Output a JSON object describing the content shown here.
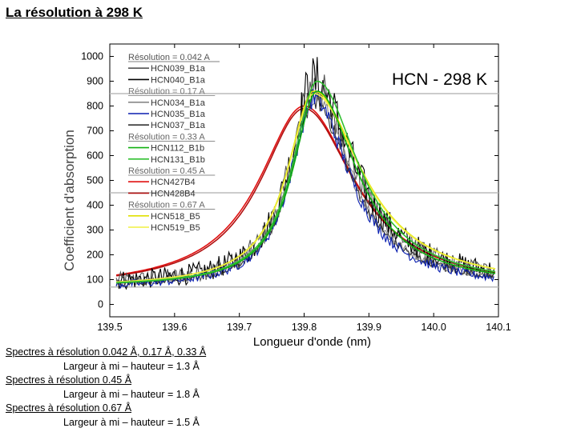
{
  "slide": {
    "title": "La résolution à 298 K",
    "notes": [
      {
        "text": "Spectres à résolution 0.042 Å, 0.17 Å, 0.33 Å",
        "underline": true,
        "indent": false
      },
      {
        "text": "Largeur à mi – hauteur = 1.3 Å",
        "underline": false,
        "indent": true
      },
      {
        "text": "Spectres à résolution 0.45 Å",
        "underline": true,
        "indent": false
      },
      {
        "text": "Largeur à mi – hauteur = 1.8 Å",
        "underline": false,
        "indent": true
      },
      {
        "text": "Spectres à résolution 0.67 Å",
        "underline": true,
        "indent": false
      },
      {
        "text": "Largeur à mi – hauteur = 1.5 Å",
        "underline": false,
        "indent": true
      }
    ]
  },
  "chart_data": {
    "type": "line",
    "title": "HCN - 298 K",
    "xlabel": "Longueur d'onde (nm)",
    "ylabel": "Coefficient d'absorption",
    "xlim": [
      139.5,
      140.1
    ],
    "ylim": [
      -50,
      1050
    ],
    "xticks": [
      "139.5",
      "139.6",
      "139.7",
      "139.8",
      "139.9",
      "140.0",
      "140.1"
    ],
    "yticks": [
      "0",
      "100",
      "200",
      "300",
      "400",
      "500",
      "600",
      "700",
      "800",
      "900",
      "1000"
    ],
    "hlines": [
      850,
      450,
      70
    ],
    "legend_position": "top-left",
    "groups": [
      {
        "label": "Résolution = 0.042 A",
        "color": "#555555",
        "series": [
          {
            "name": "HCN039_B1a",
            "color": "#555555"
          },
          {
            "name": "HCN040_B1a",
            "color": "#000000"
          }
        ]
      },
      {
        "label": "Résolution = 0.17 A",
        "color": "#777777",
        "series": [
          {
            "name": "HCN034_B1a",
            "color": "#888888"
          },
          {
            "name": "HCN035_B1a",
            "color": "#0a1fb0"
          },
          {
            "name": "HCN037_B1a",
            "color": "#333333"
          }
        ]
      },
      {
        "label": "Résolution = 0.33 A",
        "color": "#666666",
        "series": [
          {
            "name": "HCN112_B1b",
            "color": "#10b010"
          },
          {
            "name": "HCN131_B1b",
            "color": "#30c030"
          }
        ]
      },
      {
        "label": "Résolution = 0.45 A",
        "color": "#666666",
        "series": [
          {
            "name": "HCN427B4",
            "color": "#e01010"
          },
          {
            "name": "HCN428B4",
            "color": "#b01010"
          }
        ]
      },
      {
        "label": "Résolution = 0.67 A",
        "color": "#666666",
        "series": [
          {
            "name": "HCN518_B5",
            "color": "#e0e000"
          },
          {
            "name": "HCN519_B5",
            "color": "#f0f040"
          }
        ]
      }
    ],
    "profiles": {
      "HCN039_B1a": {
        "center": 139.815,
        "peak": 880,
        "hwhm_left": 0.045,
        "hwhm_right": 0.075,
        "base": 80,
        "noise": 90
      },
      "HCN040_B1a": {
        "center": 139.815,
        "peak": 900,
        "hwhm_left": 0.045,
        "hwhm_right": 0.075,
        "base": 80,
        "noise": 110
      },
      "HCN034_B1a": {
        "center": 139.815,
        "peak": 840,
        "hwhm_left": 0.044,
        "hwhm_right": 0.07,
        "base": 70,
        "noise": 40
      },
      "HCN035_B1a": {
        "center": 139.815,
        "peak": 830,
        "hwhm_left": 0.044,
        "hwhm_right": 0.068,
        "base": 65,
        "noise": 45
      },
      "HCN037_B1a": {
        "center": 139.815,
        "peak": 820,
        "hwhm_left": 0.044,
        "hwhm_right": 0.07,
        "base": 70,
        "noise": 35
      },
      "HCN112_B1b": {
        "center": 139.82,
        "peak": 860,
        "hwhm_left": 0.046,
        "hwhm_right": 0.075,
        "base": 70,
        "noise": 0
      },
      "HCN131_B1b": {
        "center": 139.82,
        "peak": 900,
        "hwhm_left": 0.046,
        "hwhm_right": 0.078,
        "base": 70,
        "noise": 0
      },
      "HCN427B4": {
        "center": 139.8,
        "peak": 800,
        "hwhm_left": 0.085,
        "hwhm_right": 0.095,
        "base": 60,
        "noise": 0
      },
      "HCN428B4": {
        "center": 139.8,
        "peak": 790,
        "hwhm_left": 0.083,
        "hwhm_right": 0.095,
        "base": 60,
        "noise": 0
      },
      "HCN518_B5": {
        "center": 139.815,
        "peak": 860,
        "hwhm_left": 0.05,
        "hwhm_right": 0.09,
        "base": 70,
        "noise": 0
      },
      "HCN519_B5": {
        "center": 139.815,
        "peak": 850,
        "hwhm_left": 0.05,
        "hwhm_right": 0.09,
        "base": 70,
        "noise": 0
      }
    }
  }
}
